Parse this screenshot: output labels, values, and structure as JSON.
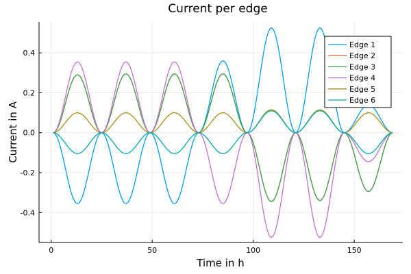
{
  "chart_data": {
    "type": "line",
    "title": "Current per edge",
    "xlabel": "Time in h",
    "ylabel": "Current in A",
    "xlim": [
      -6,
      174
    ],
    "ylim": [
      -0.55,
      0.555
    ],
    "xticks": [
      0,
      50,
      100,
      150
    ],
    "xtick_labels": [
      "0",
      "50",
      "100",
      "150"
    ],
    "yticks": [
      -0.4,
      -0.2,
      0.0,
      0.2,
      0.4
    ],
    "ytick_labels": [
      "-0.4",
      "-0.2",
      "0.0",
      "0.2",
      "0.4"
    ],
    "grid": true,
    "legend_position": "top-right",
    "x": [
      1,
      13,
      25,
      37,
      49,
      61,
      73,
      85,
      97,
      109,
      121,
      133,
      145,
      157,
      169
    ],
    "series": [
      {
        "name": "Edge 1",
        "color": "#009af9",
        "values": [
          0,
          -0.355,
          0,
          -0.355,
          0,
          -0.355,
          0,
          0.36,
          0,
          0.525,
          0,
          0.525,
          0,
          0.14,
          0
        ]
      },
      {
        "name": "Edge 2",
        "color": "#e26f46",
        "values": [
          0,
          0.29,
          0,
          0.295,
          0,
          0.295,
          0,
          0.295,
          0,
          -0.345,
          0,
          -0.34,
          0,
          -0.295,
          0
        ]
      },
      {
        "name": "Edge 3",
        "color": "#3da44d",
        "values": [
          0,
          0.29,
          0,
          0.295,
          0,
          0.295,
          0,
          0.295,
          0,
          -0.345,
          0,
          -0.34,
          0,
          -0.295,
          0
        ]
      },
      {
        "name": "Edge 4",
        "color": "#c271d2",
        "values": [
          0,
          0.355,
          0,
          0.355,
          0,
          0.355,
          0,
          -0.355,
          0,
          -0.525,
          0,
          -0.525,
          0,
          -0.145,
          0
        ]
      },
      {
        "name": "Edge 5",
        "color": "#ac8d18",
        "values": [
          0,
          0.1,
          0,
          0.1,
          0,
          0.1,
          0,
          0.1,
          0,
          0.115,
          0,
          0.115,
          0,
          0.1,
          0
        ]
      },
      {
        "name": "Edge 6",
        "color": "#00a9ad",
        "values": [
          0,
          -0.105,
          0,
          -0.105,
          0,
          -0.105,
          0,
          -0.105,
          0,
          0.11,
          0,
          0.11,
          0,
          -0.105,
          0
        ]
      }
    ]
  }
}
